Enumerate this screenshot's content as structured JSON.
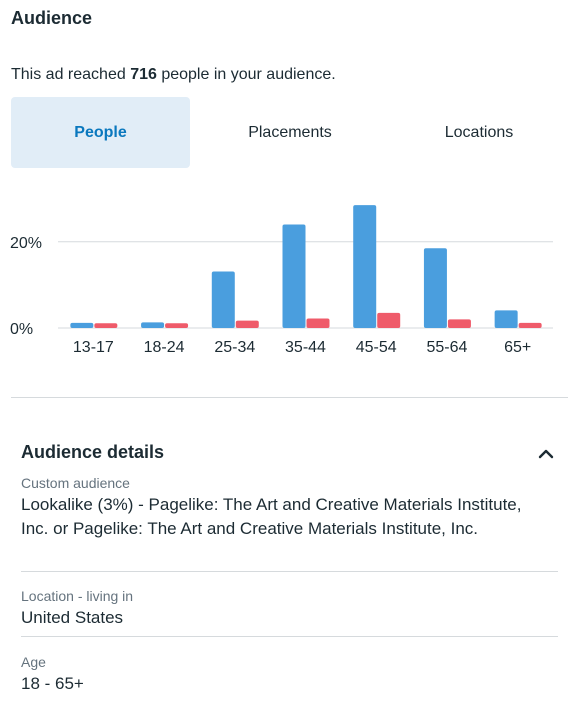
{
  "header": {
    "title": "Audience",
    "reach_prefix": "This ad reached ",
    "reach_count": "716",
    "reach_suffix": " people in your audience."
  },
  "tabs": [
    {
      "label": "People",
      "active": true
    },
    {
      "label": "Placements",
      "active": false
    },
    {
      "label": "Locations",
      "active": false
    }
  ],
  "colors": {
    "series_a": "#4a9ede",
    "series_b": "#ef5b6a",
    "accent": "#0a78be"
  },
  "chart_data": {
    "type": "bar",
    "categories": [
      "13-17",
      "18-24",
      "25-34",
      "35-44",
      "45-54",
      "55-64",
      "65+"
    ],
    "series": [
      {
        "values": [
          1.2,
          1.3,
          13.1,
          24.0,
          28.5,
          18.5,
          4.1
        ]
      },
      {
        "values": [
          1.1,
          1.1,
          1.7,
          2.2,
          3.5,
          2.0,
          1.2
        ]
      }
    ],
    "ytick_labels": [
      "0%",
      "20%"
    ],
    "yticks": [
      0,
      20
    ],
    "ylim": [
      0,
      32
    ],
    "grid": true,
    "legend": "none"
  },
  "details": {
    "title": "Audience details",
    "fields": [
      {
        "label": "Custom audience",
        "value": "Lookalike (3%) - Pagelike: The Art and Creative Materials Institute, Inc. or Pagelike: The Art and Creative Materials Institute, Inc."
      },
      {
        "label": "Location - living in",
        "value": "United States"
      },
      {
        "label": "Age",
        "value": "18 - 65+"
      }
    ]
  }
}
